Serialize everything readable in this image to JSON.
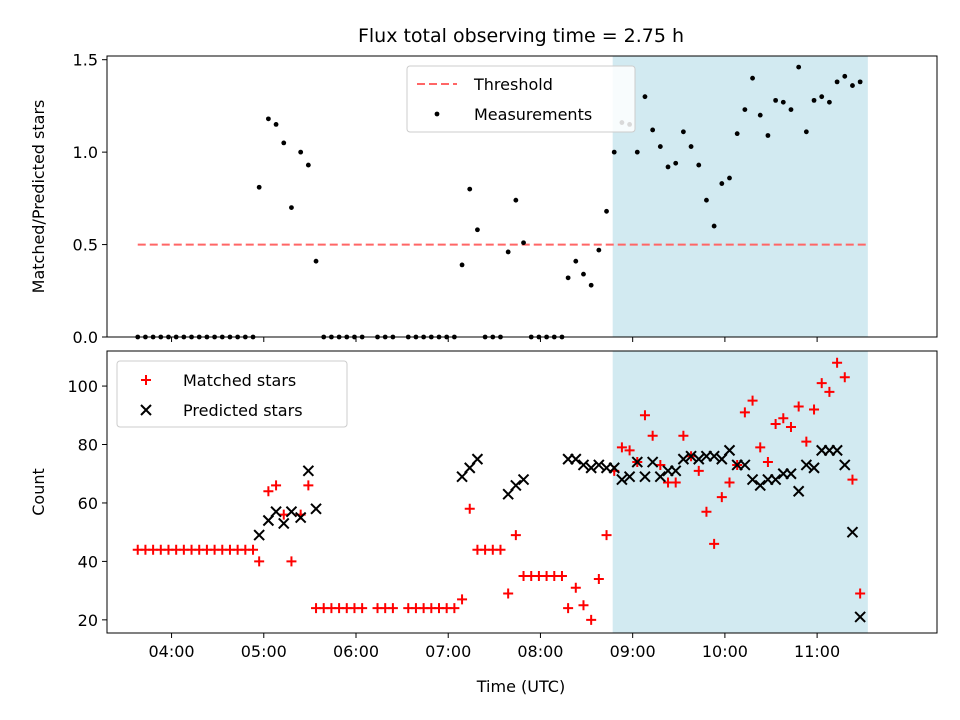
{
  "figure": {
    "title": "Flux total observing time = 2.75 h",
    "xlabel": "Time (UTC)"
  },
  "chart_data": [
    {
      "type": "scatter",
      "panel": "top",
      "ylabel": "Matched/Predicted stars",
      "xlim": [
        "03:18",
        "12:18"
      ],
      "ylim": [
        0,
        1.52
      ],
      "yticks": [
        0.0,
        0.5,
        1.0,
        1.5
      ],
      "ytick_labels": [
        "0.0",
        "0.5",
        "1.0",
        "1.5"
      ],
      "shaded_span": {
        "start": "08:47",
        "end": "11:33",
        "color": "#add8e6"
      },
      "threshold": {
        "name": "Threshold",
        "value": 0.5,
        "x_start": "03:38",
        "x_end": "11:33",
        "color": "#ff6666",
        "style": "dashed"
      },
      "legend": {
        "placement": "top-center",
        "entries": [
          "Threshold",
          "Measurements"
        ]
      },
      "series": [
        {
          "name": "Measurements",
          "color": "#000000",
          "points": [
            [
              "03:38",
              0
            ],
            [
              "03:43",
              0
            ],
            [
              "03:48",
              0
            ],
            [
              "03:53",
              0
            ],
            [
              "03:58",
              0
            ],
            [
              "04:03",
              0
            ],
            [
              "04:08",
              0
            ],
            [
              "04:13",
              0
            ],
            [
              "04:18",
              0
            ],
            [
              "04:23",
              0
            ],
            [
              "04:28",
              0
            ],
            [
              "04:33",
              0
            ],
            [
              "04:38",
              0
            ],
            [
              "04:43",
              0
            ],
            [
              "04:48",
              0
            ],
            [
              "04:53",
              0
            ],
            [
              "04:57",
              0.81
            ],
            [
              "05:03",
              1.18
            ],
            [
              "05:08",
              1.15
            ],
            [
              "05:13",
              1.05
            ],
            [
              "05:18",
              0.7
            ],
            [
              "05:24",
              1.0
            ],
            [
              "05:29",
              0.93
            ],
            [
              "05:34",
              0.41
            ],
            [
              "05:39",
              0
            ],
            [
              "05:44",
              0
            ],
            [
              "05:49",
              0
            ],
            [
              "05:54",
              0
            ],
            [
              "05:59",
              0
            ],
            [
              "06:04",
              0
            ],
            [
              "06:14",
              0
            ],
            [
              "06:19",
              0
            ],
            [
              "06:24",
              0
            ],
            [
              "06:34",
              0
            ],
            [
              "06:39",
              0
            ],
            [
              "06:44",
              0
            ],
            [
              "06:49",
              0
            ],
            [
              "06:54",
              0
            ],
            [
              "06:59",
              0
            ],
            [
              "07:04",
              0
            ],
            [
              "07:09",
              0.39
            ],
            [
              "07:14",
              0.8
            ],
            [
              "07:19",
              0.58
            ],
            [
              "07:24",
              0
            ],
            [
              "07:29",
              0
            ],
            [
              "07:34",
              0
            ],
            [
              "07:39",
              0.46
            ],
            [
              "07:44",
              0.74
            ],
            [
              "07:49",
              0.51
            ],
            [
              "07:54",
              0
            ],
            [
              "07:59",
              0
            ],
            [
              "08:04",
              0
            ],
            [
              "08:09",
              0
            ],
            [
              "08:14",
              0
            ],
            [
              "08:18",
              0.32
            ],
            [
              "08:23",
              0.41
            ],
            [
              "08:28",
              0.34
            ],
            [
              "08:33",
              0.28
            ],
            [
              "08:38",
              0.47
            ],
            [
              "08:43",
              0.68
            ],
            [
              "08:48",
              1.0
            ],
            [
              "08:53",
              1.16
            ],
            [
              "08:58",
              1.15
            ],
            [
              "09:03",
              1.0
            ],
            [
              "09:08",
              1.3
            ],
            [
              "09:13",
              1.12
            ],
            [
              "09:18",
              1.03
            ],
            [
              "09:23",
              0.92
            ],
            [
              "09:28",
              0.94
            ],
            [
              "09:33",
              1.11
            ],
            [
              "09:38",
              1.03
            ],
            [
              "09:43",
              0.93
            ],
            [
              "09:48",
              0.74
            ],
            [
              "09:53",
              0.6
            ],
            [
              "09:58",
              0.83
            ],
            [
              "10:03",
              0.86
            ],
            [
              "10:08",
              1.1
            ],
            [
              "10:13",
              1.23
            ],
            [
              "10:18",
              1.4
            ],
            [
              "10:23",
              1.2
            ],
            [
              "10:28",
              1.09
            ],
            [
              "10:33",
              1.28
            ],
            [
              "10:38",
              1.27
            ],
            [
              "10:43",
              1.23
            ],
            [
              "10:48",
              1.46
            ],
            [
              "10:53",
              1.11
            ],
            [
              "10:58",
              1.28
            ],
            [
              "11:03",
              1.3
            ],
            [
              "11:08",
              1.27
            ],
            [
              "11:13",
              1.38
            ],
            [
              "11:18",
              1.41
            ],
            [
              "11:23",
              1.36
            ],
            [
              "11:28",
              1.38
            ]
          ]
        }
      ]
    },
    {
      "type": "scatter",
      "panel": "bottom",
      "ylabel": "Count",
      "xlim": [
        "03:18",
        "12:18"
      ],
      "ylim": [
        15.5,
        112
      ],
      "yticks": [
        20,
        40,
        60,
        80,
        100
      ],
      "ytick_labels": [
        "20",
        "40",
        "60",
        "80",
        "100"
      ],
      "xticks": [
        "04:00",
        "05:00",
        "06:00",
        "07:00",
        "08:00",
        "09:00",
        "10:00",
        "11:00"
      ],
      "shaded_span": {
        "start": "08:47",
        "end": "11:33",
        "color": "#add8e6"
      },
      "legend": {
        "placement": "top-left",
        "entries": [
          "Matched stars",
          "Predicted stars"
        ]
      },
      "series": [
        {
          "name": "Matched stars",
          "marker": "plus",
          "color": "#ff0000",
          "points": [
            [
              "03:38",
              44
            ],
            [
              "03:43",
              44
            ],
            [
              "03:48",
              44
            ],
            [
              "03:53",
              44
            ],
            [
              "03:58",
              44
            ],
            [
              "04:03",
              44
            ],
            [
              "04:08",
              44
            ],
            [
              "04:13",
              44
            ],
            [
              "04:18",
              44
            ],
            [
              "04:23",
              44
            ],
            [
              "04:28",
              44
            ],
            [
              "04:33",
              44
            ],
            [
              "04:38",
              44
            ],
            [
              "04:43",
              44
            ],
            [
              "04:48",
              44
            ],
            [
              "04:53",
              44
            ],
            [
              "04:57",
              40
            ],
            [
              "05:03",
              64
            ],
            [
              "05:08",
              66
            ],
            [
              "05:13",
              56
            ],
            [
              "05:18",
              40
            ],
            [
              "05:24",
              56
            ],
            [
              "05:29",
              66
            ],
            [
              "05:34",
              24
            ],
            [
              "05:39",
              24
            ],
            [
              "05:44",
              24
            ],
            [
              "05:49",
              24
            ],
            [
              "05:54",
              24
            ],
            [
              "05:59",
              24
            ],
            [
              "06:04",
              24
            ],
            [
              "06:14",
              24
            ],
            [
              "06:19",
              24
            ],
            [
              "06:24",
              24
            ],
            [
              "06:34",
              24
            ],
            [
              "06:39",
              24
            ],
            [
              "06:44",
              24
            ],
            [
              "06:49",
              24
            ],
            [
              "06:54",
              24
            ],
            [
              "06:59",
              24
            ],
            [
              "07:04",
              24
            ],
            [
              "07:09",
              27
            ],
            [
              "07:14",
              58
            ],
            [
              "07:19",
              44
            ],
            [
              "07:24",
              44
            ],
            [
              "07:29",
              44
            ],
            [
              "07:34",
              44
            ],
            [
              "07:39",
              29
            ],
            [
              "07:44",
              49
            ],
            [
              "07:49",
              35
            ],
            [
              "07:54",
              35
            ],
            [
              "07:59",
              35
            ],
            [
              "08:04",
              35
            ],
            [
              "08:09",
              35
            ],
            [
              "08:14",
              35
            ],
            [
              "08:18",
              24
            ],
            [
              "08:23",
              31
            ],
            [
              "08:28",
              25
            ],
            [
              "08:33",
              20
            ],
            [
              "08:38",
              34
            ],
            [
              "08:43",
              49
            ],
            [
              "08:48",
              71
            ],
            [
              "08:53",
              79
            ],
            [
              "08:58",
              78
            ],
            [
              "09:03",
              74
            ],
            [
              "09:08",
              90
            ],
            [
              "09:13",
              83
            ],
            [
              "09:18",
              73
            ],
            [
              "09:23",
              67
            ],
            [
              "09:28",
              67
            ],
            [
              "09:33",
              83
            ],
            [
              "09:38",
              76
            ],
            [
              "09:43",
              71
            ],
            [
              "09:48",
              57
            ],
            [
              "09:53",
              46
            ],
            [
              "09:58",
              62
            ],
            [
              "10:03",
              67
            ],
            [
              "10:08",
              73
            ],
            [
              "10:13",
              91
            ],
            [
              "10:18",
              95
            ],
            [
              "10:23",
              79
            ],
            [
              "10:28",
              74
            ],
            [
              "10:33",
              87
            ],
            [
              "10:38",
              89
            ],
            [
              "10:43",
              86
            ],
            [
              "10:48",
              93
            ],
            [
              "10:53",
              81
            ],
            [
              "10:58",
              92
            ],
            [
              "11:03",
              101
            ],
            [
              "11:08",
              98
            ],
            [
              "11:13",
              108
            ],
            [
              "11:18",
              103
            ],
            [
              "11:23",
              68
            ],
            [
              "11:28",
              29
            ]
          ]
        },
        {
          "name": "Predicted stars",
          "marker": "x",
          "color": "#000000",
          "points": [
            [
              "04:57",
              49
            ],
            [
              "05:03",
              54
            ],
            [
              "05:08",
              57
            ],
            [
              "05:13",
              53
            ],
            [
              "05:18",
              57
            ],
            [
              "05:24",
              55
            ],
            [
              "05:29",
              71
            ],
            [
              "05:34",
              58
            ],
            [
              "07:09",
              69
            ],
            [
              "07:14",
              72
            ],
            [
              "07:19",
              75
            ],
            [
              "07:39",
              63
            ],
            [
              "07:44",
              66
            ],
            [
              "07:49",
              68
            ],
            [
              "08:18",
              75
            ],
            [
              "08:23",
              75
            ],
            [
              "08:28",
              73
            ],
            [
              "08:33",
              72
            ],
            [
              "08:38",
              73
            ],
            [
              "08:43",
              72
            ],
            [
              "08:48",
              72
            ],
            [
              "08:53",
              68
            ],
            [
              "08:58",
              69
            ],
            [
              "09:03",
              74
            ],
            [
              "09:08",
              69
            ],
            [
              "09:13",
              74
            ],
            [
              "09:18",
              69
            ],
            [
              "09:23",
              71
            ],
            [
              "09:28",
              71
            ],
            [
              "09:33",
              75
            ],
            [
              "09:38",
              76
            ],
            [
              "09:43",
              75
            ],
            [
              "09:48",
              76
            ],
            [
              "09:53",
              76
            ],
            [
              "09:58",
              75
            ],
            [
              "10:03",
              78
            ],
            [
              "10:08",
              73
            ],
            [
              "10:13",
              73
            ],
            [
              "10:18",
              68
            ],
            [
              "10:23",
              66
            ],
            [
              "10:28",
              68
            ],
            [
              "10:33",
              68
            ],
            [
              "10:38",
              70
            ],
            [
              "10:43",
              70
            ],
            [
              "10:48",
              64
            ],
            [
              "10:53",
              73
            ],
            [
              "10:58",
              72
            ],
            [
              "11:03",
              78
            ],
            [
              "11:08",
              78
            ],
            [
              "11:13",
              78
            ],
            [
              "11:18",
              73
            ],
            [
              "11:23",
              50
            ],
            [
              "11:28",
              21
            ]
          ]
        }
      ]
    }
  ]
}
